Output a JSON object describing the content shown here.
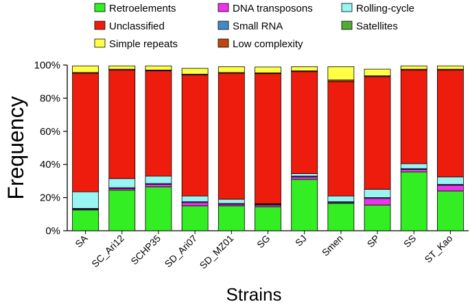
{
  "chart_data": {
    "type": "bar",
    "stacked": true,
    "xlabel": "Strains",
    "ylabel": "Frequency",
    "ylim": [
      0,
      100
    ],
    "yticks": [
      "0%",
      "20%",
      "40%",
      "60%",
      "80%",
      "100%"
    ],
    "ytick_values": [
      0,
      20,
      40,
      60,
      80,
      100
    ],
    "legend_position": "top",
    "categories": [
      "SA",
      "SC_Ari12",
      "SCHP35",
      "SD_Ari07",
      "SD_MZ01",
      "SG",
      "SJ",
      "Smen",
      "SP",
      "SS",
      "ST_Kao"
    ],
    "series": [
      {
        "name": "Retroelements",
        "color": "#33ee22",
        "values": [
          12.5,
          24.5,
          26.5,
          15.0,
          15.0,
          14.5,
          31.0,
          16.5,
          15.5,
          35.5,
          24.0
        ]
      },
      {
        "name": "DNA transposons",
        "color": "#ee33ee",
        "values": [
          0.5,
          1.0,
          1.5,
          2.0,
          1.0,
          1.0,
          1.5,
          0.5,
          4.0,
          1.5,
          3.5
        ]
      },
      {
        "name": "Small RNA",
        "color": "#4488cc",
        "values": [
          0.5,
          0.5,
          0.5,
          0.5,
          0.5,
          0.5,
          0.5,
          0.5,
          0.5,
          0.5,
          0.5
        ]
      },
      {
        "name": "Rolling-cycle",
        "color": "#99f4f4",
        "values": [
          10.0,
          5.5,
          4.5,
          3.5,
          2.5,
          0.3,
          1.5,
          3.5,
          5.0,
          3.0,
          4.5
        ]
      },
      {
        "name": "Unclassified",
        "color": "#ee1c0c",
        "values": [
          71.5,
          65.5,
          63.5,
          73.0,
          76.0,
          78.5,
          61.5,
          69.0,
          68.0,
          56.5,
          64.5
        ]
      },
      {
        "name": "Satellites",
        "color": "#55aa33",
        "values": [
          0,
          0,
          0,
          0,
          0,
          0,
          0,
          0,
          0,
          0,
          0
        ]
      },
      {
        "name": "Low complexity",
        "color": "#c04810",
        "values": [
          0.5,
          0.5,
          0.5,
          0.5,
          0.5,
          0.5,
          0.5,
          1.0,
          0.5,
          0.5,
          0.5
        ]
      },
      {
        "name": "Simple repeats",
        "color": "#ffff44",
        "values": [
          4.0,
          2.0,
          2.5,
          3.5,
          3.5,
          3.5,
          2.5,
          8.0,
          4.0,
          2.0,
          2.0
        ]
      }
    ],
    "legend": [
      {
        "name": "Retroelements",
        "color": "#33ee22"
      },
      {
        "name": "DNA transposons",
        "color": "#ee33ee"
      },
      {
        "name": "Rolling-cycle",
        "color": "#99f4f4"
      },
      {
        "name": "Unclassified",
        "color": "#ee1c0c"
      },
      {
        "name": "Small RNA",
        "color": "#4488cc"
      },
      {
        "name": "Satellites",
        "color": "#55aa33"
      },
      {
        "name": "Simple repeats",
        "color": "#ffff44"
      },
      {
        "name": "Low complexity",
        "color": "#c04810"
      }
    ]
  }
}
